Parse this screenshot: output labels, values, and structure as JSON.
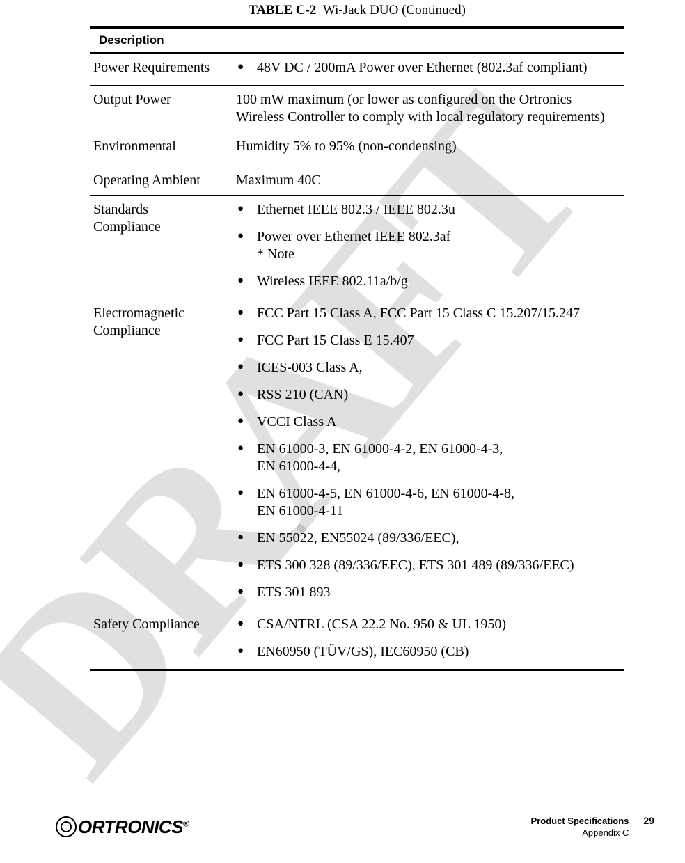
{
  "watermark": "DRAFT",
  "caption": {
    "label": "TABLE",
    "num": "C-2",
    "title": "Wi-Jack DUO (Continued)"
  },
  "header": "Description",
  "rows": {
    "power_req": {
      "label": "Power Requirements",
      "bullets": [
        "48V DC / 200mA Power over Ethernet (802.3af compliant)"
      ]
    },
    "output_power": {
      "label": "Output Power",
      "text": "100 mW maximum (or lower as configured on the Ortronics Wireless Controller to comply with local regulatory requirements)"
    },
    "env": {
      "label1": "Environmental",
      "text1": "Humidity 5% to 95% (non-condensing)",
      "label2": "Operating Ambient",
      "text2": "Maximum 40C"
    },
    "standards": {
      "label": "Standards Compliance",
      "b0": "Ethernet IEEE 802.3 / IEEE 802.3u",
      "b1": "Power over Ethernet IEEE 802.3af",
      "b1note": "* Note",
      "b2": "Wireless IEEE 802.11a/b/g"
    },
    "emc": {
      "label": "Electromagnetic Compliance",
      "b0": "FCC Part 15 Class A, FCC Part 15 Class C 15.207/15.247",
      "b1": "FCC Part 15 Class E 15.407",
      "b2": "ICES-003 Class A,",
      "b3": "RSS 210 (CAN)",
      "b4": "VCCI Class A",
      "b5a": "EN 61000-3, EN 61000-4-2, EN 61000-4-3,",
      "b5b": "EN 61000-4-4,",
      "b6a": "EN 61000-4-5, EN 61000-4-6, EN 61000-4-8,",
      "b6b": "EN 61000-4-11",
      "b7": "EN 55022, EN55024 (89/336/EEC),",
      "b8": "ETS 300 328 (89/336/EEC), ETS 301 489 (89/336/EEC)",
      "b9": "ETS 301 893"
    },
    "safety": {
      "label": "Safety Compliance",
      "b0": "CSA/NTRL (CSA 22.2 No. 950 & UL 1950)",
      "b1": "EN60950 (TÜV/GS), IEC60950 (CB)"
    }
  },
  "footer": {
    "brand": "ORTRONICS",
    "title1": "Product Specifications",
    "title2": "Appendix C",
    "page": "29"
  }
}
